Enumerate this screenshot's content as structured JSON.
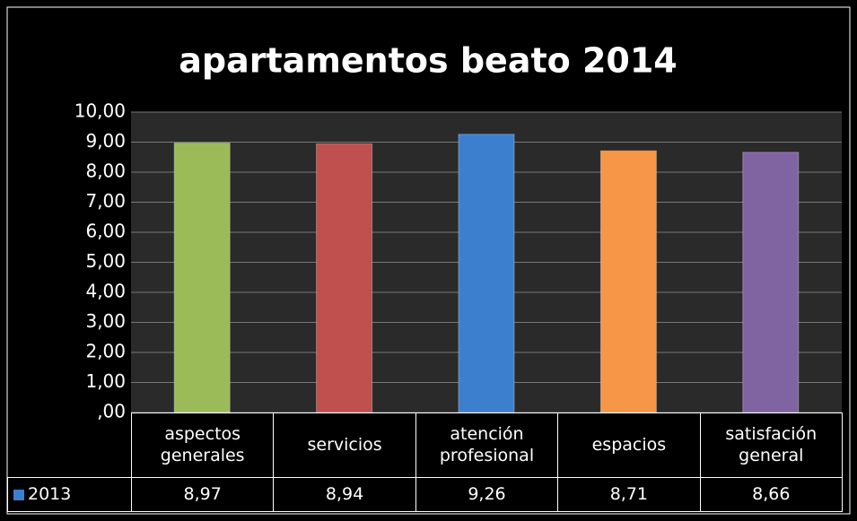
{
  "chart_data": {
    "type": "bar",
    "title": "apartamentos beato 2014",
    "categories": [
      "aspectos generales",
      "servicios",
      "atención profesional",
      "espacios",
      "satisfación general"
    ],
    "series": [
      {
        "name": "2013",
        "colors": [
          "#9bbb59",
          "#c0504d",
          "#3d7fcf",
          "#f79646",
          "#8064a2"
        ],
        "values": [
          8.97,
          8.94,
          9.26,
          8.71,
          8.66
        ],
        "value_labels": [
          "8,97",
          "8,94",
          "9,26",
          "8,71",
          "8,66"
        ]
      }
    ],
    "ylim": [
      0,
      10
    ],
    "yticks": [
      {
        "value": 0,
        "label": ",00"
      },
      {
        "value": 1,
        "label": "1,00"
      },
      {
        "value": 2,
        "label": "2,00"
      },
      {
        "value": 3,
        "label": "3,00"
      },
      {
        "value": 4,
        "label": "4,00"
      },
      {
        "value": 5,
        "label": "5,00"
      },
      {
        "value": 6,
        "label": "6,00"
      },
      {
        "value": 7,
        "label": "7,00"
      },
      {
        "value": 8,
        "label": "8,00"
      },
      {
        "value": 9,
        "label": "9,00"
      },
      {
        "value": 10,
        "label": "10,00"
      }
    ],
    "grid": true
  }
}
